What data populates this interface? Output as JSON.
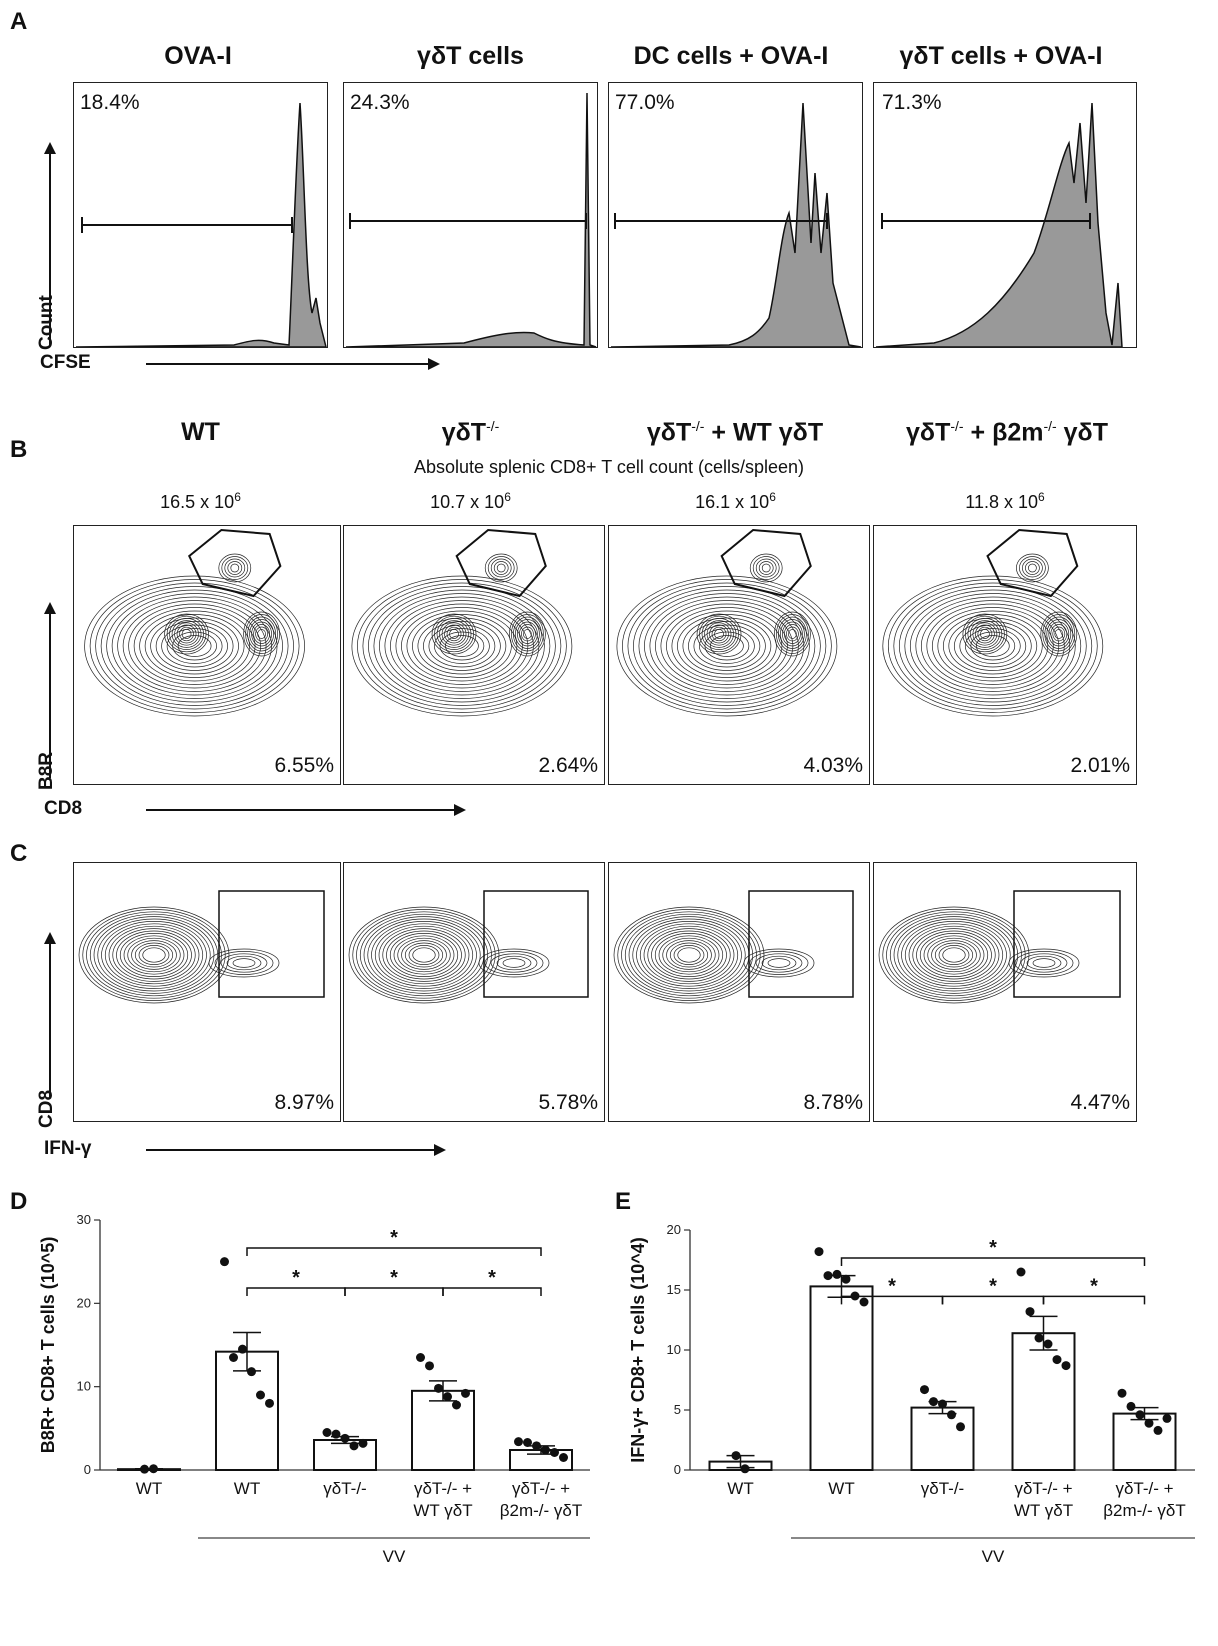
{
  "panel_A": {
    "letter": "A",
    "headers": [
      "OVA-I",
      "γδT cells",
      "DC cells + OVA-I",
      "γδT cells + OVA-I"
    ],
    "percents": [
      "18.4%",
      "24.3%",
      "77.0%",
      "71.3%"
    ],
    "y_label": "Count",
    "x_label": "CFSE"
  },
  "panel_B": {
    "letter": "B",
    "headers": [
      "WT",
      "γδT",
      "γδT",
      "γδT"
    ],
    "header_sup": [
      "",
      "-/-",
      "-/-",
      "-/-"
    ],
    "header_tail": [
      "",
      "",
      " + WT γδT",
      " + β2m"
    ],
    "header_tail2": [
      "",
      "",
      "",
      "-/-"
    ],
    "header_tail3": [
      "",
      "",
      "",
      " γδT"
    ],
    "subtitle": "Absolute splenic CD8+ T cell count (cells/spleen)",
    "counts_base": [
      "16.5 x 10",
      "10.7 x 10",
      "16.1 x 10",
      "11.8 x 10"
    ],
    "counts_exp": "6",
    "percents": [
      "6.55%",
      "2.64%",
      "4.03%",
      "2.01%"
    ],
    "y_label": "B8R",
    "x_label": "CD8"
  },
  "panel_C": {
    "letter": "C",
    "percents": [
      "8.97%",
      "5.78%",
      "8.78%",
      "4.47%"
    ],
    "y_label": "CD8",
    "x_label": "IFN-γ"
  },
  "panel_D": {
    "letter": "D"
  },
  "panel_E": {
    "letter": "E"
  },
  "chart_data": [
    {
      "type": "bar",
      "id": "D",
      "ylabel": "B8R+ CD8+ T cells (10^5)",
      "ylim": [
        0,
        30
      ],
      "yticks": [
        "0",
        "10",
        "20",
        "30"
      ],
      "categories": [
        "WT",
        "WT",
        "γδT-/-",
        "γδT-/- + WT γδT",
        "γδT-/- + β2m-/- γδT"
      ],
      "values": [
        0.1,
        14.2,
        3.6,
        9.5,
        2.4
      ],
      "errors": [
        0.05,
        2.3,
        0.4,
        1.2,
        0.5
      ],
      "points": [
        [
          0.1,
          0.15
        ],
        [
          25,
          13.5,
          14.5,
          11.8,
          9,
          8
        ],
        [
          4.5,
          4.3,
          3.8,
          2.9,
          3.2
        ],
        [
          13.5,
          12.5,
          9.8,
          8.8,
          7.8,
          9.2
        ],
        [
          3.4,
          3.3,
          2.9,
          2.4,
          2.1,
          1.5
        ]
      ],
      "group_label": "VV",
      "significance": [
        {
          "from": 1,
          "to": 4,
          "label": "*"
        },
        {
          "from": 1,
          "to": 2,
          "label": "*"
        },
        {
          "from": 2,
          "to": 3,
          "label": "*"
        },
        {
          "from": 3,
          "to": 4,
          "label": "*"
        }
      ]
    },
    {
      "type": "bar",
      "id": "E",
      "ylabel": "IFN-γ+ CD8+ T cells (10^4)",
      "ylim": [
        0,
        20
      ],
      "yticks": [
        "0",
        "5",
        "10",
        "15",
        "20"
      ],
      "categories": [
        "WT",
        "WT",
        "γδT-/-",
        "γδT-/- + WT γδT",
        "γδT-/- + β2m-/- γδT"
      ],
      "values": [
        0.7,
        15.3,
        5.2,
        11.4,
        4.7
      ],
      "errors": [
        0.5,
        0.9,
        0.5,
        1.4,
        0.5
      ],
      "points": [
        [
          1.2,
          0.1
        ],
        [
          18.2,
          16.2,
          16.3,
          15.9,
          14.5,
          14.0
        ],
        [
          6.7,
          5.7,
          5.5,
          4.6,
          3.6
        ],
        [
          16.5,
          13.2,
          11.0,
          10.5,
          9.2,
          8.7
        ],
        [
          6.4,
          5.3,
          4.6,
          3.9,
          3.3,
          4.3
        ]
      ],
      "group_label": "VV",
      "significance": [
        {
          "from": 1,
          "to": 4,
          "label": "*"
        },
        {
          "from": 1,
          "to": 2,
          "label": "*"
        },
        {
          "from": 2,
          "to": 3,
          "label": "*"
        },
        {
          "from": 3,
          "to": 4,
          "label": "*"
        }
      ]
    }
  ]
}
